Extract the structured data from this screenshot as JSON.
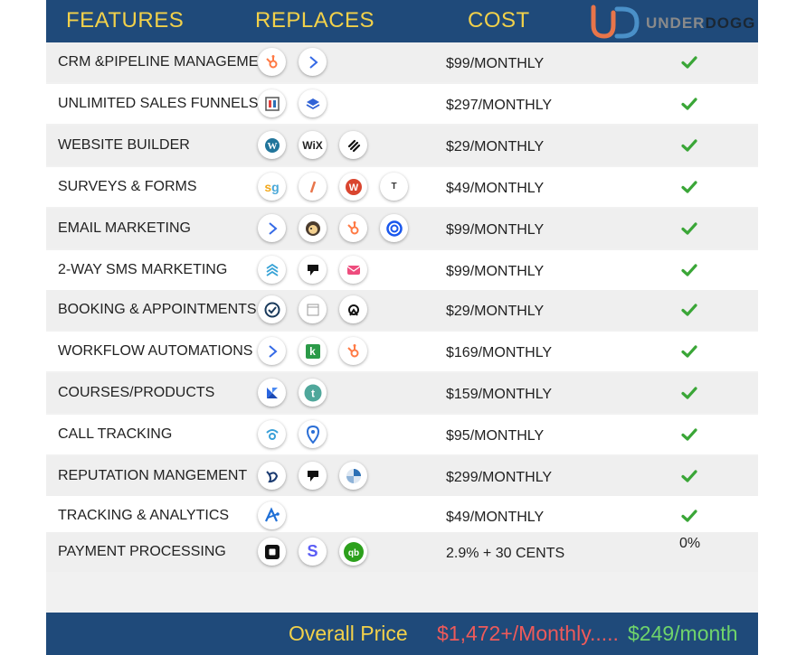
{
  "header": {
    "features": "FEATURES",
    "replaces": "REPLACES",
    "cost": "COST"
  },
  "logo": {
    "under": "UNDER",
    "dogg": "DOGG"
  },
  "colors": {
    "header_bg": "#1f4a7a",
    "heading_yellow": "#f2d14a",
    "check_green": "#3aa637",
    "price_red": "#ee5a5a",
    "price_green": "#6fd46b"
  },
  "rows": [
    {
      "feature": "CRM &PIPELINE MANAGEMENT",
      "icons": [
        "hubspot-icon",
        "activecampaign-icon"
      ],
      "cost": "$99/MONTHLY",
      "status": "check"
    },
    {
      "feature": "UNLIMITED SALES FUNNELS",
      "icons": [
        "clickfunnels-icon",
        "leadpages-icon"
      ],
      "cost": "$297/MONTHLY",
      "status": "check"
    },
    {
      "feature": "WEBSITE BUILDER",
      "icons": [
        "wordpress-icon",
        "wix-icon",
        "squarespace-icon"
      ],
      "cost": "$29/MONTHLY",
      "status": "check"
    },
    {
      "feature": "SURVEYS & FORMS",
      "icons": [
        "surveygizmo-icon",
        "formstack-icon",
        "wufoo-icon",
        "typeform-icon"
      ],
      "cost": "$49/MONTHLY",
      "status": "check"
    },
    {
      "feature": "EMAIL MARKETING",
      "icons": [
        "activecampaign-icon",
        "mailchimp-icon",
        "hubspot-icon",
        "constantcontact-icon"
      ],
      "cost": "$99/MONTHLY",
      "status": "check"
    },
    {
      "feature": "2-WAY SMS MARKETING",
      "icons": [
        "eztexting-icon",
        "podium-icon",
        "textmagic-icon"
      ],
      "cost": "$99/MONTHLY",
      "status": "check"
    },
    {
      "feature": "BOOKING & APPOINTMENTS",
      "icons": [
        "calendly-icon",
        "calendar-icon",
        "acuity-icon"
      ],
      "cost": "$29/MONTHLY",
      "status": "check"
    },
    {
      "feature": "WORKFLOW AUTOMATIONS",
      "icons": [
        "activecampaign-icon",
        "keap-icon",
        "hubspot-icon"
      ],
      "cost": "$169/MONTHLY",
      "status": "check"
    },
    {
      "feature": "COURSES/PRODUCTS",
      "icons": [
        "kajabi-icon",
        "teachable-icon"
      ],
      "cost": "$159/MONTHLY",
      "status": "check"
    },
    {
      "feature": "CALL TRACKING",
      "icons": [
        "callrail-icon",
        "location-pin-icon"
      ],
      "cost": "$95/MONTHLY",
      "status": "check"
    },
    {
      "feature": "REPUTATION MANGEMENT",
      "icons": [
        "birdeye-icon",
        "podium-icon",
        "yext-icon"
      ],
      "cost": "$299/MONTHLY",
      "status": "check"
    },
    {
      "feature": "TRACKING & ANALYTICS",
      "icons": [
        "analytics-icon"
      ],
      "cost": "$49/MONTHLY",
      "status": "check"
    },
    {
      "feature": "PAYMENT PROCESSING",
      "icons": [
        "square-icon",
        "stripe-icon",
        "quickbooks-icon"
      ],
      "cost": "2.9% + 30 CENTS",
      "status": "0%"
    }
  ],
  "footer": {
    "label": "Overall Price",
    "old_price": "$1,472+/Monthly.....",
    "new_price": "$249/month"
  }
}
